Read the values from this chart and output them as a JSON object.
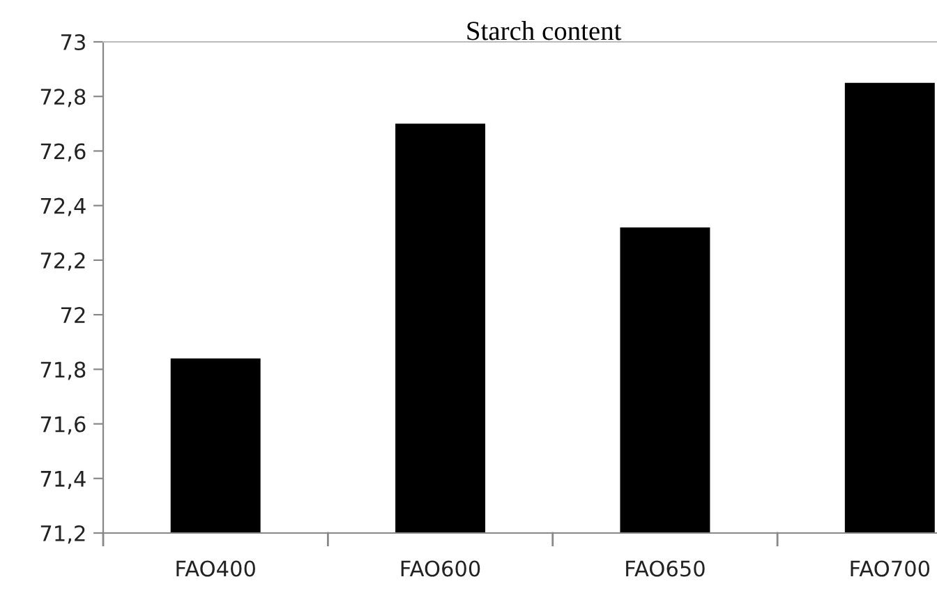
{
  "chart_data": {
    "type": "bar",
    "title": "Starch content",
    "categories": [
      "FAO400",
      "FAO600",
      "FAO650",
      "FAO700"
    ],
    "values": [
      71.84,
      72.7,
      72.32,
      72.85
    ],
    "color": "#000000",
    "ylim": [
      71.2,
      73
    ],
    "yticks": [
      {
        "value": 71.2,
        "label": "71,2"
      },
      {
        "value": 71.4,
        "label": "71,4"
      },
      {
        "value": 71.6,
        "label": "71,6"
      },
      {
        "value": 71.8,
        "label": "71,8"
      },
      {
        "value": 72,
        "label": "72"
      },
      {
        "value": 72.2,
        "label": "72,2"
      },
      {
        "value": 72.4,
        "label": "72,4"
      },
      {
        "value": 72.6,
        "label": "72,6"
      },
      {
        "value": 72.8,
        "label": "72,8"
      },
      {
        "value": 73,
        "label": "73"
      }
    ],
    "grid": false
  }
}
